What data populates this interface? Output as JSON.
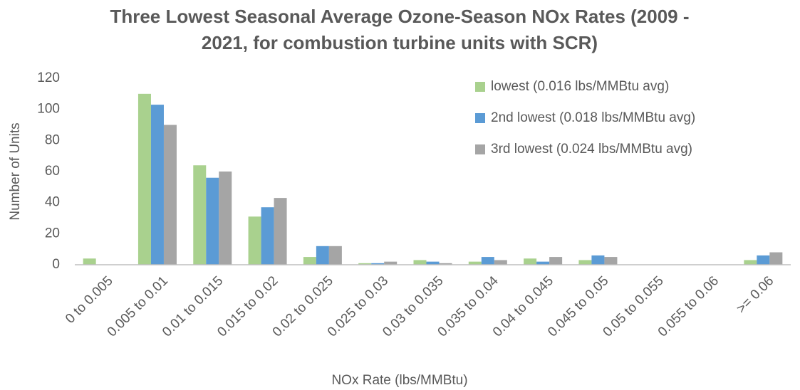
{
  "chart_data": {
    "type": "bar",
    "title": [
      "Three Lowest Seasonal Average Ozone-Season NOx Rates (2009 -",
      "2021, for combustion turbine units with SCR)"
    ],
    "x_label": "NOx Rate (lbs/MMBtu)",
    "y_label": "Number of Units",
    "categories": [
      "0 to 0.005",
      "0.005 to 0.01",
      "0.01 to 0.015",
      "0.015 to 0.02",
      "0.02 to 0.025",
      "0.025 to 0.03",
      "0.03 to 0.035",
      "0.035 to 0.04",
      "0.04 to 0.045",
      "0.045 to 0.05",
      "0.05 to 0.055",
      "0.055 to 0.06",
      ">= 0.06"
    ],
    "series": [
      {
        "name": "lowest (0.016 lbs/MMBtu avg)",
        "color": "#a9d18e",
        "values": [
          4,
          110,
          64,
          31,
          5,
          1,
          3,
          2,
          4,
          3,
          0,
          0,
          3
        ]
      },
      {
        "name": "2nd lowest (0.018 lbs/MMBtu avg)",
        "color": "#5b9bd5",
        "values": [
          0,
          103,
          56,
          37,
          12,
          1,
          2,
          5,
          2,
          6,
          0,
          0,
          6
        ]
      },
      {
        "name": "3rd lowest (0.024 lbs/MMBtu avg)",
        "color": "#a5a5a5",
        "values": [
          0,
          90,
          60,
          43,
          12,
          2,
          1,
          3,
          5,
          5,
          0,
          0,
          8
        ]
      }
    ],
    "ylim": [
      0,
      120
    ],
    "yticks": [
      0,
      20,
      40,
      60,
      80,
      100,
      120
    ],
    "grid": false,
    "legend": "upper right"
  }
}
